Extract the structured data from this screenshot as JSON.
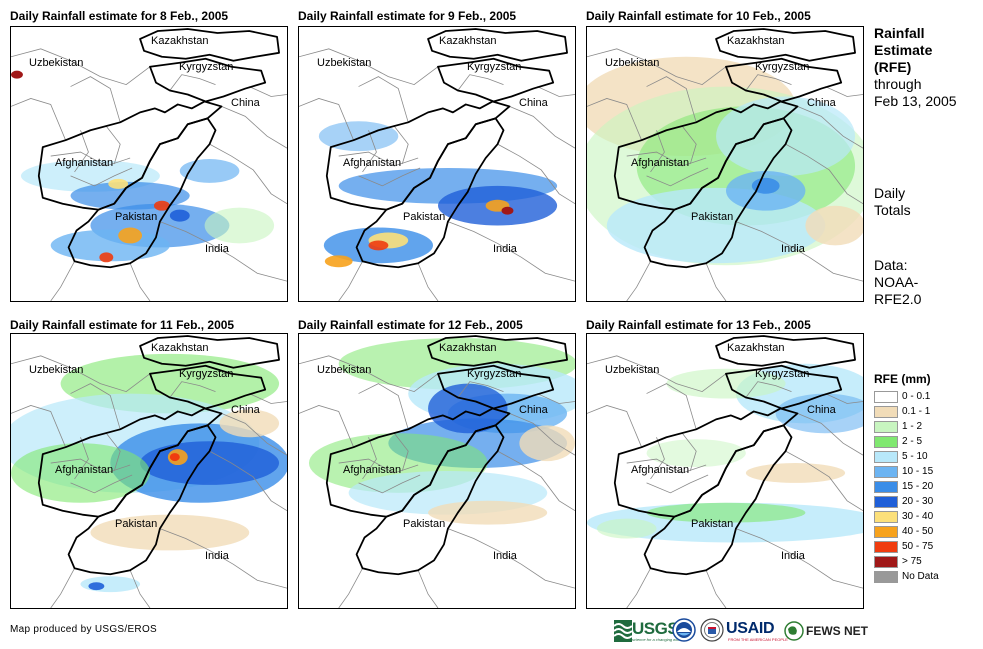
{
  "panels": [
    {
      "title": "Daily Rainfall estimate for 8 Feb., 2005"
    },
    {
      "title": "Daily Rainfall estimate for 9 Feb., 2005"
    },
    {
      "title": "Daily Rainfall estimate for 10 Feb., 2005"
    },
    {
      "title": "Daily Rainfall estimate for 11 Feb., 2005"
    },
    {
      "title": "Daily Rainfall estimate for 12 Feb., 2005"
    },
    {
      "title": "Daily Rainfall estimate for 13 Feb., 2005"
    }
  ],
  "map_labels": {
    "kazakhstan": "Kazakhstan",
    "uzbekistan": "Uzbekistan",
    "kyrgyzstan": "Kyrgyzstan",
    "china": "China",
    "afghanistan": "Afghanistan",
    "pakistan": "Pakistan",
    "india": "India"
  },
  "sidebar": {
    "title_line1": "Rainfall",
    "title_line2": "Estimate",
    "title_line3": "(RFE)",
    "title_line4": "through",
    "title_line5": "Feb 13, 2005",
    "daily_line1": "Daily",
    "daily_line2": "Totals",
    "data_line1": "Data:",
    "data_line2": "NOAA-",
    "data_line3": "RFE2.0"
  },
  "legend": {
    "title": "RFE (mm)",
    "items": [
      {
        "label": "0 - 0.1",
        "color": "#ffffff"
      },
      {
        "label": "0.1 - 1",
        "color": "#f1dcb8"
      },
      {
        "label": "1 - 2",
        "color": "#c8f5c0"
      },
      {
        "label": "2 - 5",
        "color": "#80e870"
      },
      {
        "label": "5 - 10",
        "color": "#b8e8fa"
      },
      {
        "label": "10 - 15",
        "color": "#6cb4f2"
      },
      {
        "label": "15 - 20",
        "color": "#3a8de8"
      },
      {
        "label": "20 - 30",
        "color": "#1f5fd8"
      },
      {
        "label": "30 - 40",
        "color": "#fce07a"
      },
      {
        "label": "40 - 50",
        "color": "#f7a21c"
      },
      {
        "label": "50 - 75",
        "color": "#f03c0f"
      },
      {
        "label": "> 75",
        "color": "#a01818"
      },
      {
        "label": "No Data",
        "color": "#999999"
      }
    ]
  },
  "credit": "Map produced by USGS/EROS",
  "logos": {
    "usgs": "USGS",
    "usgs_tagline": "science for a changing world",
    "usaid": "USAID",
    "usaid_tagline": "FROM THE AMERICAN PEOPLE",
    "fews": "FEWS NET"
  }
}
